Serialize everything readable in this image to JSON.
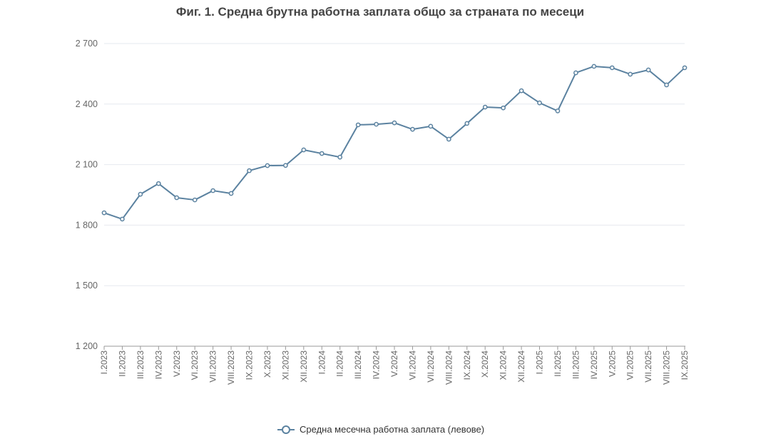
{
  "chart_data": {
    "type": "line",
    "title": "Фиг. 1. Средна брутна работна заплата общо за страната по месеци",
    "xlabel": "",
    "ylabel": "",
    "ylim": [
      1200,
      2700
    ],
    "yticks": [
      1200,
      1500,
      1800,
      2100,
      2400,
      2700
    ],
    "ytick_labels": [
      "1 200",
      "1 500",
      "1 800",
      "2 100",
      "2 400",
      "2 700"
    ],
    "grid": true,
    "legend_position": "bottom",
    "categories": [
      "I.2023",
      "II.2023",
      "III.2023",
      "IV.2023",
      "V.2023",
      "VI.2023",
      "VII.2023",
      "VIII.2023",
      "IX.2023",
      "X.2023",
      "XI.2023",
      "XII.2023",
      "I.2024",
      "II.2024",
      "III.2024",
      "IV.2024",
      "V.2024",
      "VI.2024",
      "VII.2024",
      "VIII.2024",
      "IX.2024",
      "X.2024",
      "XI.2024",
      "XII.2024",
      "I.2025",
      "II.2025",
      "III.2025",
      "IV.2025",
      "V.2025",
      "VI.2025",
      "VII.2025",
      "VIII.2025",
      "IX.2025"
    ],
    "series": [
      {
        "name": "Средна месечна работна заплата (левове)",
        "color": "#5b82a0",
        "values": [
          1861,
          1830,
          1953,
          2006,
          1936,
          1925,
          1971,
          1957,
          2070,
          2095,
          2096,
          2173,
          2155,
          2137,
          2297,
          2300,
          2307,
          2275,
          2290,
          2226,
          2304,
          2385,
          2381,
          2466,
          2406,
          2366,
          2555,
          2587,
          2580,
          2548,
          2569,
          2495,
          2580
        ]
      }
    ]
  }
}
